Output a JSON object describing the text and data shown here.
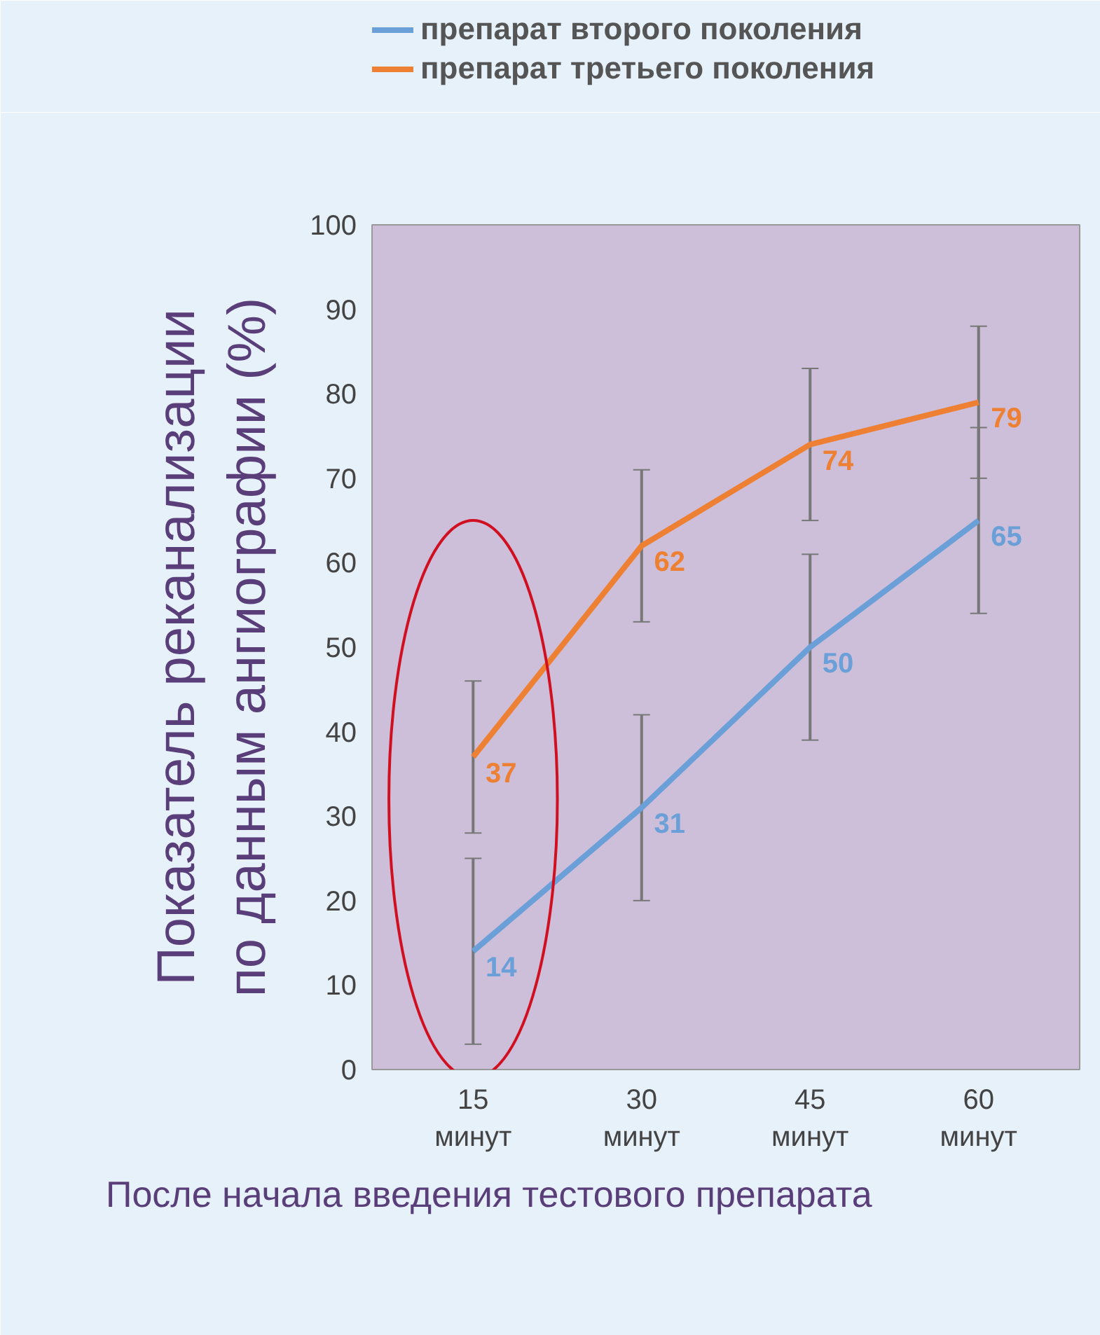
{
  "chart_data": {
    "type": "line",
    "xlabel": "После начала введения тестового препарата",
    "ylabel": "Показатель реканализации\nпо данным ангиографии (%)",
    "categories": [
      "15\nминут",
      "30\nминут",
      "45\nминут",
      "60\nминут"
    ],
    "series": [
      {
        "name": "препарат второго поколения",
        "color": "#6a9fd8",
        "values": [
          14,
          31,
          50,
          65
        ],
        "errors": [
          [
            3,
            25
          ],
          [
            20,
            42
          ],
          [
            39,
            61
          ],
          [
            54,
            76
          ]
        ]
      },
      {
        "name": "препарат третьего поколения",
        "color": "#ee8033",
        "values": [
          37,
          62,
          74,
          79
        ],
        "errors": [
          [
            28,
            46
          ],
          [
            53,
            71
          ],
          [
            65,
            83
          ],
          [
            70,
            88
          ]
        ]
      }
    ],
    "ylim": [
      0,
      100
    ],
    "yticks": [
      0,
      10,
      20,
      30,
      40,
      50,
      60,
      70,
      80,
      90,
      100
    ],
    "data_labels": true,
    "grid": false,
    "legend": "top",
    "marker": "none",
    "line_style": "solid"
  }
}
